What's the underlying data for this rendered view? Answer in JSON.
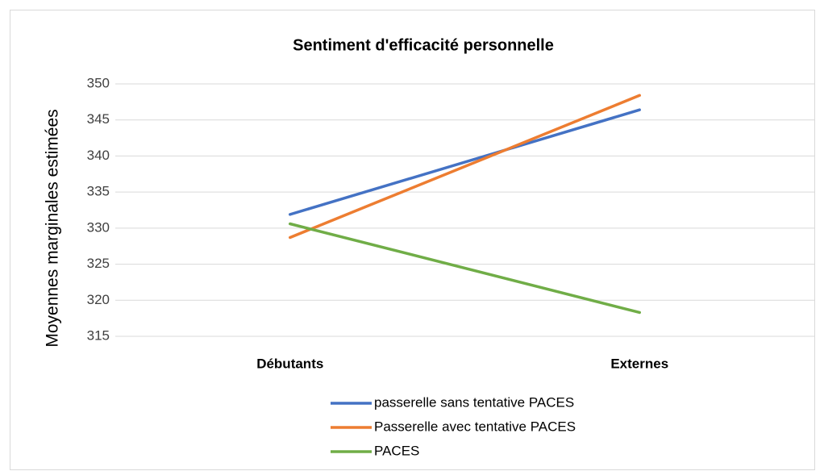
{
  "chart_data": {
    "type": "line",
    "title": "Sentiment d'efficacité personnelle",
    "y_label": "Moyennes marginales estimées",
    "categories": [
      "Débutants",
      "Externes"
    ],
    "series": [
      {
        "name": "passerelle sans tentative PACES",
        "color": "#4472c4",
        "values": [
          331.9,
          346.4
        ]
      },
      {
        "name": "Passerelle avec tentative PACES",
        "color": "#ed7d31",
        "values": [
          328.7,
          348.4
        ]
      },
      {
        "name": "PACES",
        "color": "#70ad47",
        "values": [
          330.6,
          318.3
        ]
      }
    ],
    "ylim": [
      315,
      350
    ],
    "yticks": [
      315,
      320,
      325,
      330,
      335,
      340,
      345,
      350
    ],
    "grid": true
  }
}
